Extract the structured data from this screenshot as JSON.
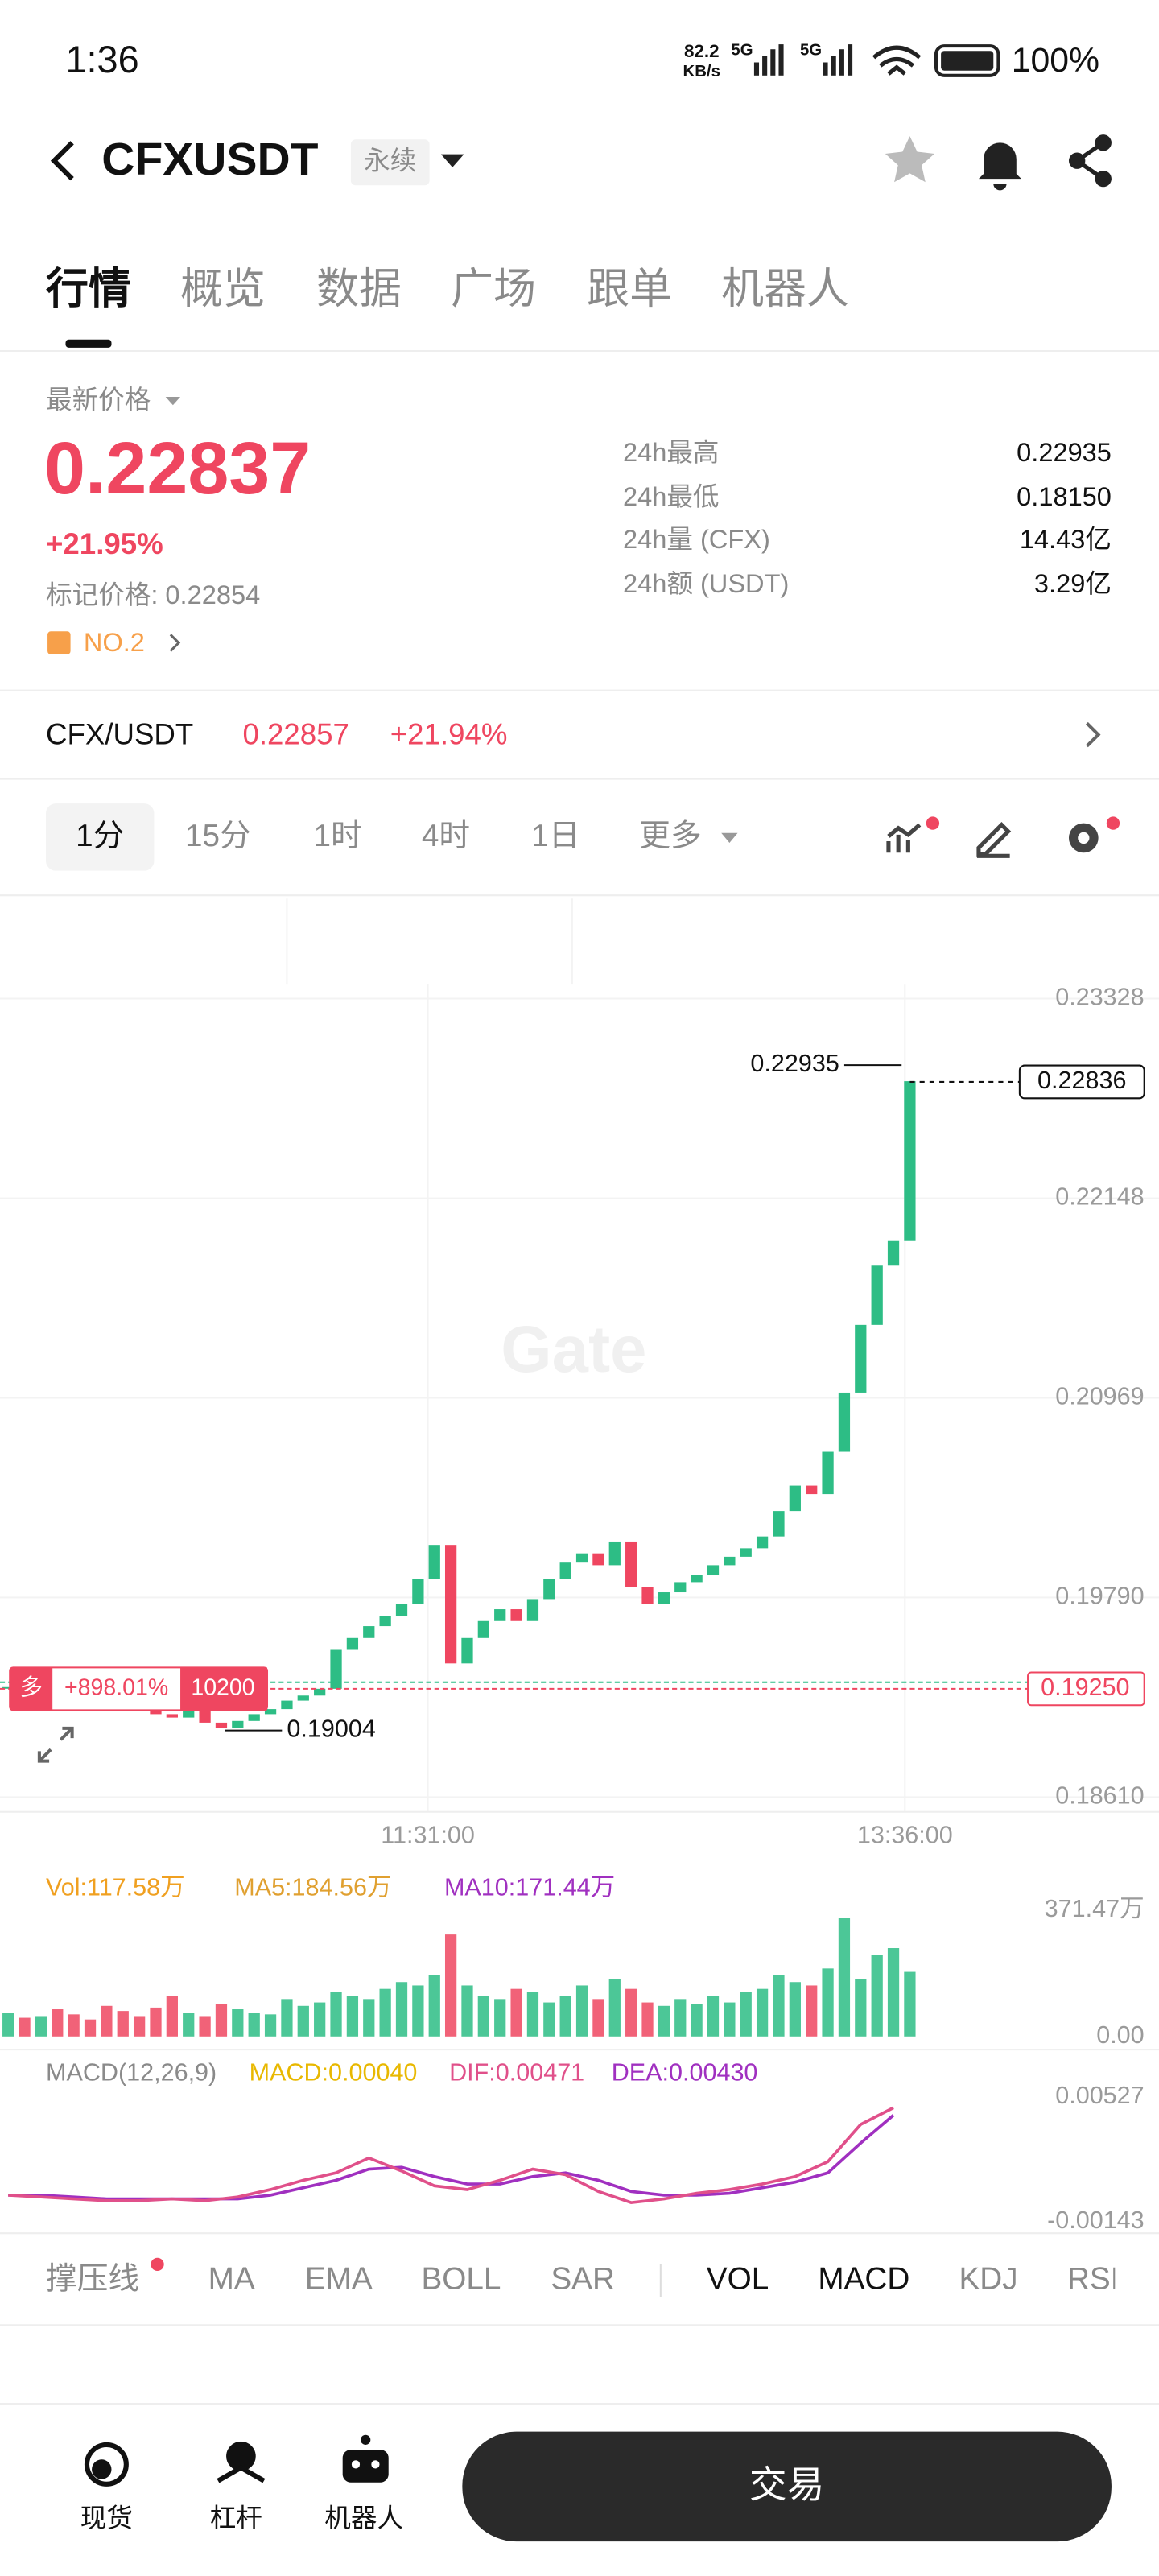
{
  "status_bar": {
    "time": "1:36",
    "net_speed": "82.2",
    "net_unit": "KB/s",
    "net1": "5G",
    "net2": "5G",
    "battery": "100%"
  },
  "header": {
    "symbol": "CFXUSDT",
    "contract": "永续"
  },
  "tabs": [
    "行情",
    "概览",
    "数据",
    "广场",
    "跟单",
    "机器人"
  ],
  "price_panel": {
    "label": "最新价格",
    "price": "0.22837",
    "change": "+21.95%",
    "mark_label": "标记价格: 0.22854",
    "rank": "NO.2",
    "stats": [
      [
        "24h最高",
        "0.22935"
      ],
      [
        "24h最低",
        "0.18150"
      ],
      [
        "24h量 (CFX)",
        "14.43亿"
      ],
      [
        "24h额 (USDT)",
        "3.29亿"
      ]
    ]
  },
  "spot_row": {
    "pair": "CFX/USDT",
    "price": "0.22857",
    "change": "+21.94%"
  },
  "intervals": [
    "1分",
    "15分",
    "1时",
    "4时",
    "1日",
    "更多"
  ],
  "kline": {
    "watermark": "Gate",
    "ylim": [
      0.1861,
      0.23328
    ],
    "yticks": [
      0.23328,
      0.22148,
      0.20969,
      {
        "value": 0.1979,
        "label": "0.19790"
      },
      {
        "value": 0.1861,
        "label": "0.18610"
      }
    ],
    "time_labels": [
      "11:31:00",
      "13:36:00"
    ],
    "closes": [
      0.1926,
      0.1924,
      0.1927,
      0.1925,
      0.1923,
      0.1921,
      0.1918,
      0.1915,
      0.1912,
      0.191,
      0.1908,
      0.1912,
      0.1905,
      0.1902,
      0.1906,
      0.191,
      0.1913,
      0.1918,
      0.1921,
      0.1925,
      0.1948,
      0.1955,
      0.1962,
      0.1968,
      0.1975,
      0.199,
      0.201,
      0.194,
      0.1955,
      0.1965,
      0.1972,
      0.1965,
      0.1978,
      0.199,
      0.2,
      0.2005,
      0.1998,
      0.2012,
      0.1985,
      0.1975,
      0.1982,
      0.1988,
      0.1992,
      0.1998,
      0.2003,
      0.2008,
      0.2015,
      0.203,
      0.2045,
      0.204,
      0.2065,
      0.21,
      0.214,
      0.2175,
      0.219,
      0.2284
    ],
    "high": 0.22935,
    "low": 0.19004,
    "last": 0.22836,
    "position": {
      "side": "多",
      "pnl": "+898.01%",
      "size": "10200",
      "price": {
        "value": 0.1925,
        "label": "0.19250"
      }
    },
    "volume": {
      "legend": [
        "Vol:117.58万",
        "MA5:184.56万",
        "MA10:171.44万"
      ],
      "ylim": [
        0,
        371.47
      ],
      "yticks": [
        {
          "value": 371.47,
          "label": "371.47万"
        },
        {
          "value": 0,
          "label": "0.00"
        }
      ],
      "values": [
        70,
        55,
        60,
        80,
        65,
        50,
        90,
        75,
        60,
        85,
        120,
        70,
        60,
        95,
        80,
        70,
        65,
        110,
        90,
        100,
        130,
        120,
        110,
        140,
        160,
        150,
        180,
        300,
        150,
        120,
        110,
        140,
        130,
        100,
        120,
        150,
        110,
        170,
        140,
        100,
        90,
        110,
        95,
        120,
        100,
        130,
        140,
        180,
        160,
        150,
        200,
        350,
        170,
        240,
        260,
        190
      ]
    },
    "macd": {
      "legend": [
        "MACD(12,26,9)",
        "MACD:0.00040",
        "DIF:0.00471",
        "DEA:0.00430"
      ],
      "ylim": [
        -0.00143,
        0.00527
      ],
      "yticks": [
        0.00527,
        -0.00143
      ],
      "dif": [
        0,
        -0.0001,
        -0.0002,
        -0.0003,
        -0.0003,
        -0.0002,
        -0.0003,
        -0.0001,
        0.0003,
        0.0008,
        0.0012,
        0.002,
        0.0013,
        0.0005,
        0.0003,
        0.0008,
        0.0014,
        0.0011,
        0.0002,
        -0.0004,
        -0.0002,
        0.0001,
        0.0003,
        0.0006,
        0.001,
        0.0018,
        0.0038,
        0.0047
      ],
      "dea": [
        0,
        0,
        -0.0001,
        -0.0002,
        -0.0002,
        -0.0002,
        -0.0002,
        -0.0002,
        0,
        0.0004,
        0.0008,
        0.0014,
        0.0015,
        0.001,
        0.0006,
        0.0006,
        0.001,
        0.0012,
        0.0008,
        0.0002,
        0,
        0,
        0.0001,
        0.0004,
        0.0007,
        0.0012,
        0.0028,
        0.0043
      ]
    }
  },
  "indicators": [
    "撑压线",
    "MA",
    "EMA",
    "BOLL",
    "SAR",
    "VOL",
    "MACD",
    "KDJ",
    "RSI"
  ],
  "bottom_nav": {
    "items": [
      "现货",
      "杠杆",
      "机器人"
    ],
    "trade": "交易"
  }
}
